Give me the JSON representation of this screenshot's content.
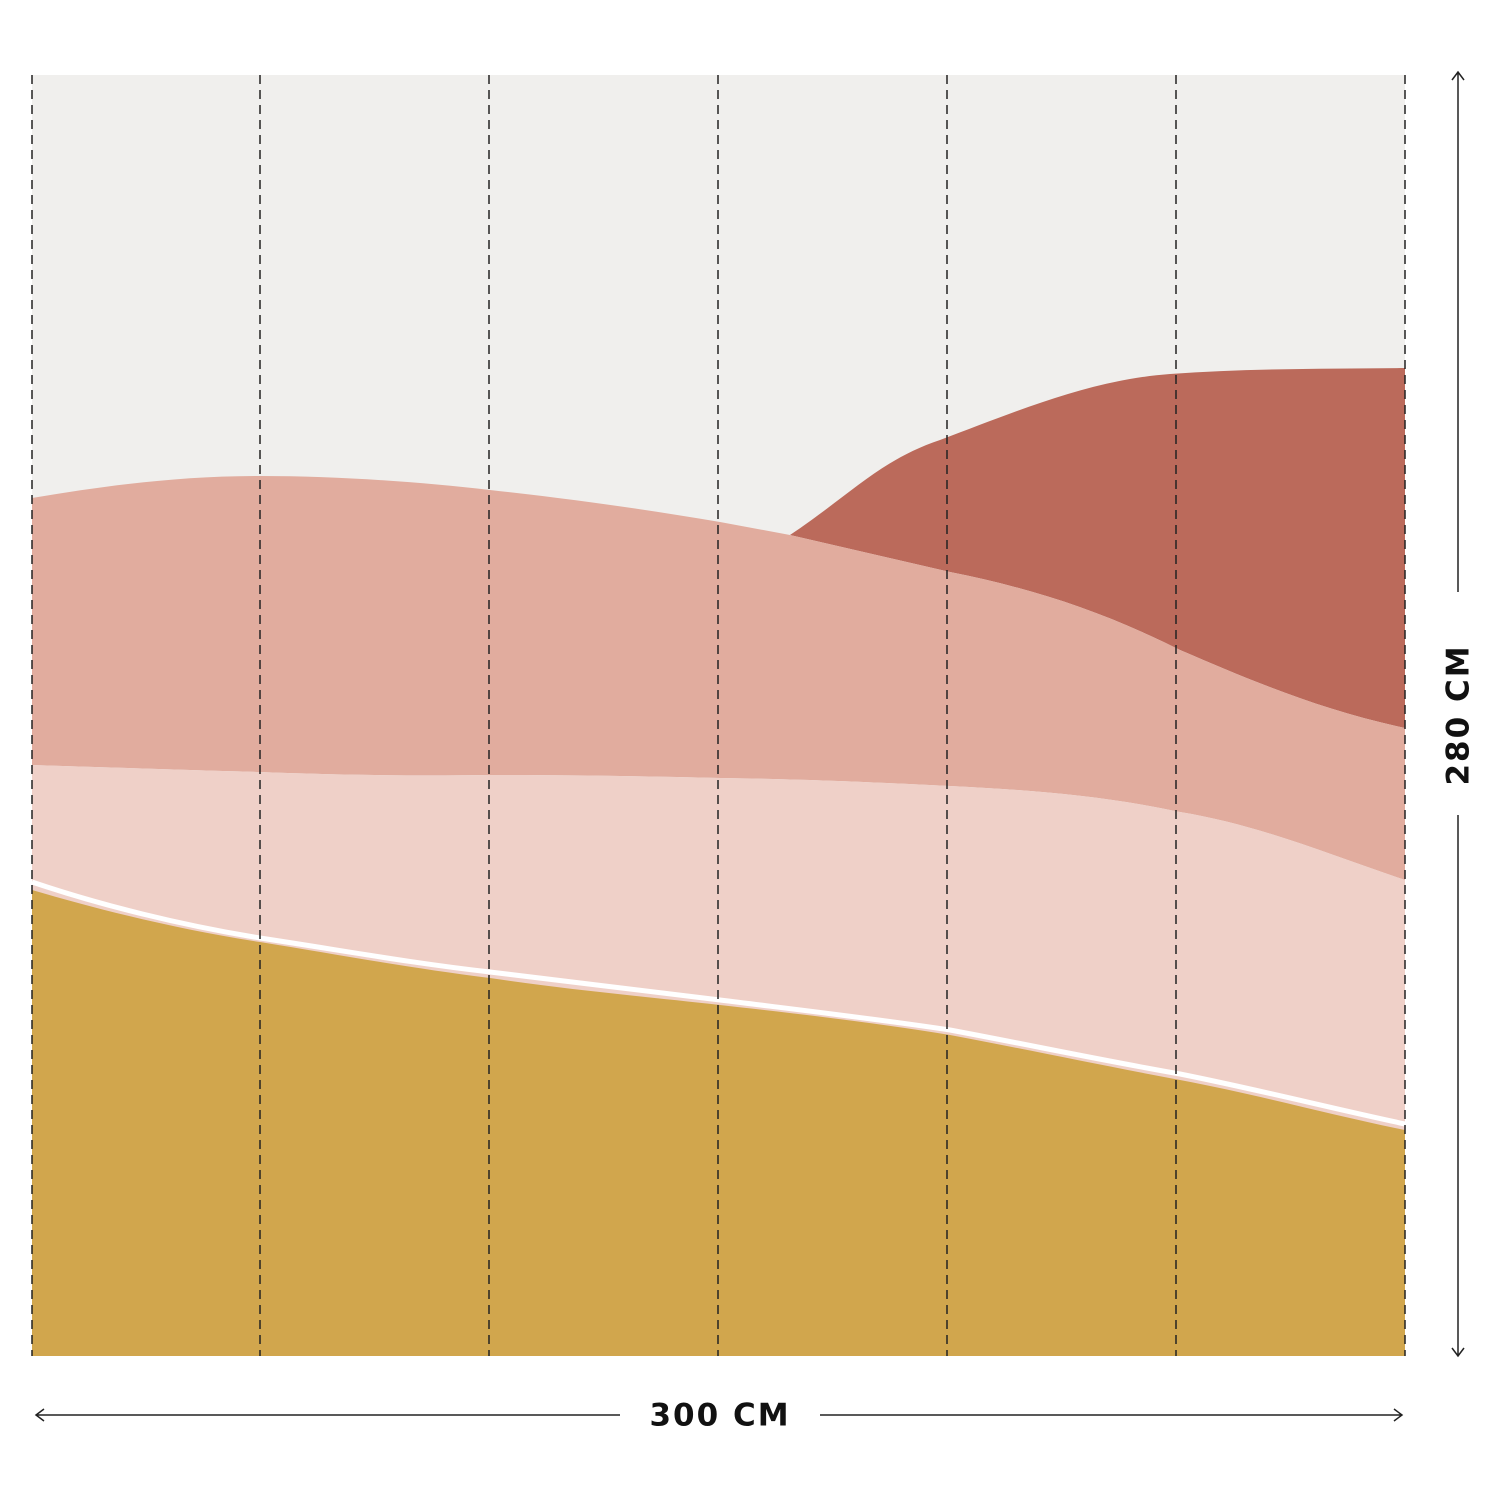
{
  "dimensions": {
    "width": "300 CM",
    "height": "280 CM"
  }
}
